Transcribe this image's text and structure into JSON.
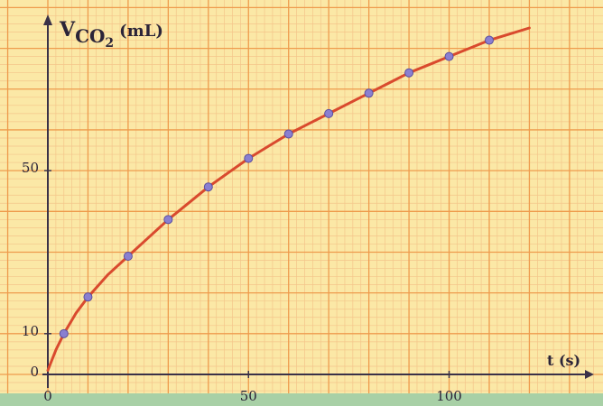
{
  "chart_data": {
    "type": "scatter",
    "title": "",
    "ylabel_main": "V",
    "ylabel_sub": "CO",
    "ylabel_subscript": "2",
    "ylabel_unit": "(mL)",
    "xlabel": "t (s)",
    "x_ticks": [
      {
        "value": 0,
        "label": "0"
      },
      {
        "value": 50,
        "label": "50"
      },
      {
        "value": 100,
        "label": "100"
      }
    ],
    "y_ticks": [
      {
        "value": 0,
        "label": "0"
      },
      {
        "value": 10,
        "label": "10"
      },
      {
        "value": 50,
        "label": "50"
      }
    ],
    "xlim": [
      0,
      128
    ],
    "ylim": [
      0,
      85
    ],
    "grid": true,
    "series": [
      {
        "points": [
          {
            "x": 4,
            "y": 10
          },
          {
            "x": 10,
            "y": 19
          },
          {
            "x": 20,
            "y": 29
          },
          {
            "x": 30,
            "y": 38
          },
          {
            "x": 40,
            "y": 46
          },
          {
            "x": 50,
            "y": 53
          },
          {
            "x": 60,
            "y": 59
          },
          {
            "x": 70,
            "y": 64
          },
          {
            "x": 80,
            "y": 69
          },
          {
            "x": 90,
            "y": 74
          },
          {
            "x": 100,
            "y": 78
          },
          {
            "x": 110,
            "y": 82
          }
        ],
        "curve": [
          {
            "x": 0,
            "y": 1
          },
          {
            "x": 2,
            "y": 6
          },
          {
            "x": 4,
            "y": 10
          },
          {
            "x": 7,
            "y": 15
          },
          {
            "x": 10,
            "y": 19
          },
          {
            "x": 15,
            "y": 24.5
          },
          {
            "x": 20,
            "y": 29
          },
          {
            "x": 25,
            "y": 33.5
          },
          {
            "x": 30,
            "y": 38
          },
          {
            "x": 35,
            "y": 42
          },
          {
            "x": 40,
            "y": 46
          },
          {
            "x": 45,
            "y": 49.5
          },
          {
            "x": 50,
            "y": 53
          },
          {
            "x": 55,
            "y": 56
          },
          {
            "x": 60,
            "y": 59
          },
          {
            "x": 65,
            "y": 61.5
          },
          {
            "x": 70,
            "y": 64
          },
          {
            "x": 75,
            "y": 66.5
          },
          {
            "x": 80,
            "y": 69
          },
          {
            "x": 85,
            "y": 71.5
          },
          {
            "x": 90,
            "y": 74
          },
          {
            "x": 95,
            "y": 76
          },
          {
            "x": 100,
            "y": 78
          },
          {
            "x": 105,
            "y": 80
          },
          {
            "x": 110,
            "y": 82
          },
          {
            "x": 115,
            "y": 83.5
          },
          {
            "x": 120,
            "y": 85
          }
        ]
      }
    ]
  },
  "colors": {
    "paper": "#fbe8a6",
    "grid_minor": "#f4c58a",
    "grid_major": "#ee9b4d",
    "axis": "#3a3148",
    "curve": "#d94a2e",
    "point": "#8a7fd0",
    "point_edge": "#5a4fa0",
    "text": "#2b2438",
    "border_bottom": "#a8d0a6"
  }
}
